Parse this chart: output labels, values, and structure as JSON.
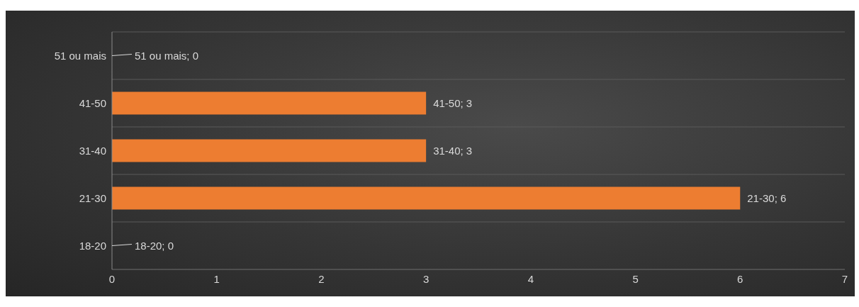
{
  "chart_data": {
    "type": "bar",
    "orientation": "horizontal",
    "categories": [
      "51 ou mais",
      "41-50",
      "31-40",
      "21-30",
      "18-20"
    ],
    "values": [
      0,
      3,
      3,
      6,
      0
    ],
    "value_labels": [
      "51 ou mais; 0",
      "41-50; 3",
      "31-40; 3",
      "21-30; 6",
      "18-20; 0"
    ],
    "color": "#ed7d31",
    "xlim": [
      0,
      7
    ],
    "xticks": [
      0,
      1,
      2,
      3,
      4,
      5,
      6,
      7
    ],
    "grid": "y"
  }
}
